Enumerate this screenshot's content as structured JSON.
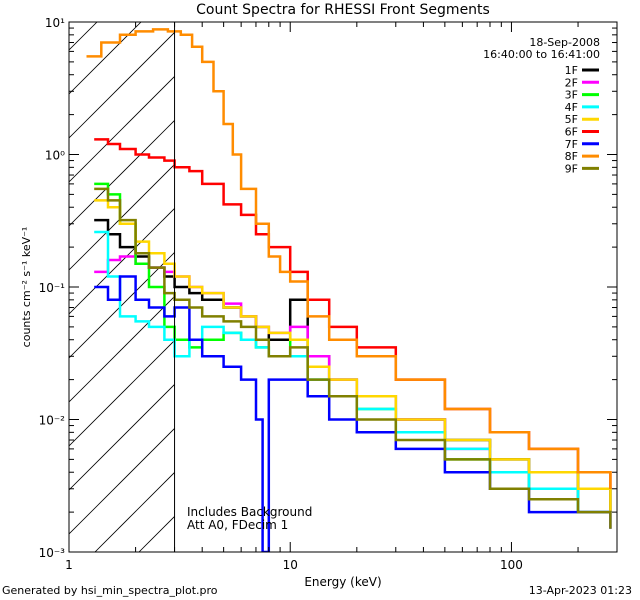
{
  "chart_data": {
    "type": "line",
    "title": "Count Spectra for RHESSI Front Segments",
    "xlabel": "Energy (keV)",
    "ylabel": "counts cm⁻² s⁻¹ keV⁻¹",
    "xscale": "log",
    "yscale": "log",
    "xlim": [
      1,
      300
    ],
    "ylim": [
      0.001,
      10
    ],
    "x_ticks": [
      {
        "value": 1,
        "label": "1"
      },
      {
        "value": 10,
        "label": "10"
      },
      {
        "value": 100,
        "label": "100"
      }
    ],
    "y_ticks": [
      {
        "value": 10,
        "label": "10¹"
      },
      {
        "value": 1,
        "label": "10⁰"
      },
      {
        "value": 0.1,
        "label": "10⁻¹"
      },
      {
        "value": 0.01,
        "label": "10⁻²"
      },
      {
        "value": 0.001,
        "label": "10⁻³"
      }
    ],
    "date": "18-Sep-2008",
    "time_range": "16:40:00 to 16:41:00",
    "hatch_region_kev": [
      1,
      3
    ],
    "annotation_lines": [
      "Includes Background",
      "Att A0, FDecim 1"
    ],
    "series": [
      {
        "name": "1F",
        "color": "#000000",
        "points": [
          [
            1.3,
            0.32
          ],
          [
            1.5,
            0.25
          ],
          [
            1.7,
            0.2
          ],
          [
            2,
            0.17
          ],
          [
            2.3,
            0.14
          ],
          [
            2.7,
            0.12
          ],
          [
            3,
            0.1
          ],
          [
            3.5,
            0.09
          ],
          [
            4,
            0.08
          ],
          [
            5,
            0.07
          ],
          [
            6,
            0.06
          ],
          [
            7,
            0.05
          ],
          [
            8,
            0.04
          ],
          [
            10,
            0.08
          ],
          [
            12,
            0.03
          ],
          [
            15,
            0.02
          ],
          [
            20,
            0.015
          ],
          [
            30,
            0.01
          ],
          [
            50,
            0.007
          ],
          [
            80,
            0.005
          ],
          [
            120,
            0.004
          ],
          [
            200,
            0.003
          ],
          [
            280,
            0.002
          ]
        ]
      },
      {
        "name": "2F",
        "color": "#ff00ff",
        "points": [
          [
            1.3,
            0.13
          ],
          [
            1.5,
            0.16
          ],
          [
            1.7,
            0.17
          ],
          [
            2,
            0.15
          ],
          [
            2.3,
            0.14
          ],
          [
            2.7,
            0.13
          ],
          [
            3,
            0.12
          ],
          [
            3.5,
            0.1
          ],
          [
            4,
            0.09
          ],
          [
            5,
            0.075
          ],
          [
            6,
            0.06
          ],
          [
            7,
            0.05
          ],
          [
            8,
            0.045
          ],
          [
            10,
            0.05
          ],
          [
            12,
            0.03
          ],
          [
            15,
            0.02
          ],
          [
            20,
            0.015
          ],
          [
            30,
            0.01
          ],
          [
            50,
            0.006
          ],
          [
            80,
            0.004
          ],
          [
            120,
            0.003
          ],
          [
            200,
            0.002
          ],
          [
            280,
            0.002
          ]
        ]
      },
      {
        "name": "3F",
        "color": "#00ff00",
        "points": [
          [
            1.3,
            0.6
          ],
          [
            1.5,
            0.5
          ],
          [
            1.7,
            0.3
          ],
          [
            2,
            0.15
          ],
          [
            2.3,
            0.1
          ],
          [
            2.7,
            0.05
          ],
          [
            3,
            0.04
          ],
          [
            3.5,
            0.035
          ],
          [
            4,
            0.04
          ],
          [
            5,
            0.045
          ],
          [
            6,
            0.04
          ],
          [
            7,
            0.035
          ],
          [
            8,
            0.03
          ],
          [
            10,
            0.04
          ],
          [
            12,
            0.02
          ],
          [
            15,
            0.015
          ],
          [
            20,
            0.012
          ],
          [
            30,
            0.008
          ],
          [
            50,
            0.005
          ],
          [
            80,
            0.004
          ],
          [
            120,
            0.003
          ],
          [
            200,
            0.002
          ],
          [
            280,
            0.002
          ]
        ]
      },
      {
        "name": "4F",
        "color": "#00ffff",
        "points": [
          [
            1.3,
            0.26
          ],
          [
            1.5,
            0.12
          ],
          [
            1.7,
            0.06
          ],
          [
            2,
            0.055
          ],
          [
            2.3,
            0.05
          ],
          [
            2.7,
            0.04
          ],
          [
            3,
            0.03
          ],
          [
            3.5,
            0.04
          ],
          [
            4,
            0.05
          ],
          [
            5,
            0.045
          ],
          [
            6,
            0.04
          ],
          [
            7,
            0.035
          ],
          [
            8,
            0.03
          ],
          [
            10,
            0.03
          ],
          [
            12,
            0.02
          ],
          [
            15,
            0.015
          ],
          [
            20,
            0.012
          ],
          [
            30,
            0.008
          ],
          [
            50,
            0.006
          ],
          [
            80,
            0.004
          ],
          [
            120,
            0.003
          ],
          [
            200,
            0.002
          ],
          [
            280,
            0.002
          ]
        ]
      },
      {
        "name": "5F",
        "color": "#ffd700",
        "points": [
          [
            1.3,
            0.45
          ],
          [
            1.5,
            0.4
          ],
          [
            1.7,
            0.3
          ],
          [
            2,
            0.22
          ],
          [
            2.3,
            0.18
          ],
          [
            2.7,
            0.15
          ],
          [
            3,
            0.12
          ],
          [
            3.5,
            0.1
          ],
          [
            4,
            0.09
          ],
          [
            5,
            0.07
          ],
          [
            6,
            0.06
          ],
          [
            7,
            0.05
          ],
          [
            8,
            0.045
          ],
          [
            10,
            0.04
          ],
          [
            12,
            0.025
          ],
          [
            15,
            0.02
          ],
          [
            20,
            0.015
          ],
          [
            30,
            0.01
          ],
          [
            50,
            0.007
          ],
          [
            80,
            0.005
          ],
          [
            120,
            0.004
          ],
          [
            200,
            0.003
          ],
          [
            280,
            0.002
          ]
        ]
      },
      {
        "name": "6F",
        "color": "#ff0000",
        "points": [
          [
            1.3,
            1.3
          ],
          [
            1.5,
            1.2
          ],
          [
            1.7,
            1.1
          ],
          [
            2,
            1.0
          ],
          [
            2.3,
            0.95
          ],
          [
            2.7,
            0.9
          ],
          [
            3,
            0.8
          ],
          [
            3.5,
            0.75
          ],
          [
            4,
            0.6
          ],
          [
            5,
            0.42
          ],
          [
            6,
            0.35
          ],
          [
            7,
            0.25
          ],
          [
            8,
            0.2
          ],
          [
            10,
            0.13
          ],
          [
            12,
            0.08
          ],
          [
            15,
            0.05
          ],
          [
            20,
            0.035
          ],
          [
            30,
            0.02
          ],
          [
            50,
            0.012
          ],
          [
            80,
            0.008
          ],
          [
            120,
            0.006
          ],
          [
            200,
            0.004
          ],
          [
            280,
            0.003
          ]
        ]
      },
      {
        "name": "7F",
        "color": "#0000ff",
        "points": [
          [
            1.3,
            0.1
          ],
          [
            1.5,
            0.08
          ],
          [
            1.7,
            0.12
          ],
          [
            2,
            0.08
          ],
          [
            2.3,
            0.07
          ],
          [
            2.7,
            0.06
          ],
          [
            3,
            0.07
          ],
          [
            3.5,
            0.04
          ],
          [
            4,
            0.03
          ],
          [
            5,
            0.025
          ],
          [
            6,
            0.02
          ],
          [
            7,
            0.01
          ],
          [
            7.5,
            0.001
          ],
          [
            8,
            0.02
          ],
          [
            10,
            0.02
          ],
          [
            12,
            0.015
          ],
          [
            15,
            0.01
          ],
          [
            20,
            0.008
          ],
          [
            30,
            0.006
          ],
          [
            50,
            0.004
          ],
          [
            80,
            0.003
          ],
          [
            120,
            0.002
          ],
          [
            200,
            0.002
          ],
          [
            280,
            0.0015
          ]
        ]
      },
      {
        "name": "8F",
        "color": "#ff8c00",
        "points": [
          [
            1.2,
            5.5
          ],
          [
            1.4,
            7.0
          ],
          [
            1.7,
            8.0
          ],
          [
            2,
            8.5
          ],
          [
            2.4,
            8.8
          ],
          [
            2.8,
            8.5
          ],
          [
            3.2,
            8.0
          ],
          [
            3.6,
            6.5
          ],
          [
            4,
            5.0
          ],
          [
            4.5,
            3.0
          ],
          [
            5,
            1.7
          ],
          [
            5.5,
            1.0
          ],
          [
            6,
            0.55
          ],
          [
            7,
            0.3
          ],
          [
            8,
            0.17
          ],
          [
            9,
            0.13
          ],
          [
            10,
            0.11
          ],
          [
            12,
            0.06
          ],
          [
            15,
            0.04
          ],
          [
            20,
            0.03
          ],
          [
            30,
            0.02
          ],
          [
            50,
            0.012
          ],
          [
            80,
            0.008
          ],
          [
            120,
            0.006
          ],
          [
            200,
            0.004
          ],
          [
            280,
            0.003
          ]
        ]
      },
      {
        "name": "9F",
        "color": "#808000",
        "points": [
          [
            1.3,
            0.55
          ],
          [
            1.5,
            0.45
          ],
          [
            1.7,
            0.32
          ],
          [
            2,
            0.18
          ],
          [
            2.3,
            0.14
          ],
          [
            2.7,
            0.09
          ],
          [
            3,
            0.08
          ],
          [
            3.5,
            0.07
          ],
          [
            4,
            0.06
          ],
          [
            5,
            0.055
          ],
          [
            6,
            0.05
          ],
          [
            7,
            0.04
          ],
          [
            8,
            0.03
          ],
          [
            10,
            0.035
          ],
          [
            12,
            0.02
          ],
          [
            15,
            0.015
          ],
          [
            20,
            0.01
          ],
          [
            30,
            0.007
          ],
          [
            50,
            0.005
          ],
          [
            80,
            0.003
          ],
          [
            120,
            0.0025
          ],
          [
            200,
            0.002
          ],
          [
            280,
            0.0015
          ]
        ]
      }
    ]
  },
  "footer": {
    "generated_by": "Generated by hsi_min_spectra_plot.pro",
    "timestamp": "13-Apr-2023 01:23"
  }
}
